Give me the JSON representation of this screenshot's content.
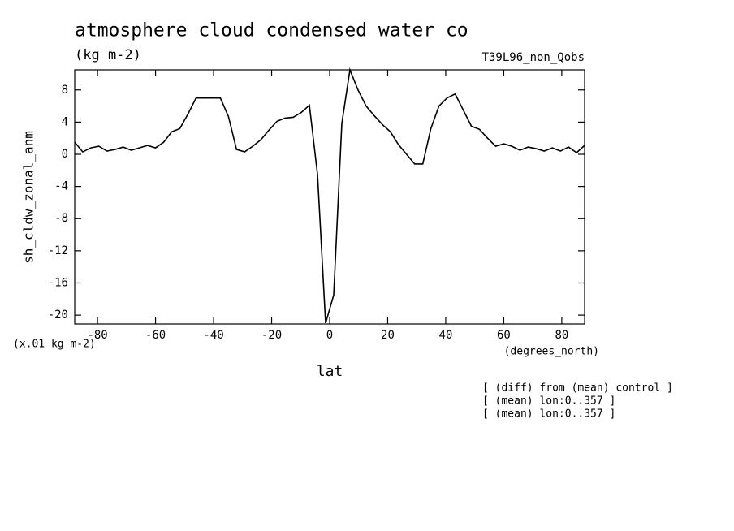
{
  "chart_data": {
    "type": "line",
    "title": "atmosphere cloud condensed water co",
    "subtitle": "(kg m-2)",
    "experiment": "T39L96_non_Qobs",
    "y_label": "sh_cldw_zonal_anm",
    "y_units": "(x.01 kg m-2)",
    "x_units": "(degrees_north)",
    "x_label": "lat",
    "notes": [
      "[ (diff) from (mean) control ]",
      "[ (mean) lon:0..357 ]",
      "[ (mean) lon:0..357 ]"
    ],
    "x": [
      -87.86,
      -85.1,
      -82.31,
      -79.53,
      -76.74,
      -73.95,
      -71.16,
      -68.37,
      -65.58,
      -62.79,
      -60.0,
      -57.21,
      -54.42,
      -51.63,
      -48.84,
      -46.04,
      -43.25,
      -40.46,
      -37.67,
      -34.88,
      -32.09,
      -29.3,
      -26.51,
      -23.72,
      -20.93,
      -18.14,
      -15.35,
      -12.56,
      -9.77,
      -6.98,
      -4.19,
      -1.4,
      1.4,
      4.19,
      6.98,
      9.77,
      12.56,
      15.35,
      18.14,
      20.93,
      23.72,
      26.51,
      29.3,
      32.09,
      34.88,
      37.67,
      40.46,
      43.25,
      46.04,
      48.84,
      51.63,
      54.42,
      57.21,
      60.0,
      62.79,
      65.58,
      68.37,
      71.16,
      73.95,
      76.74,
      79.53,
      82.31,
      85.1,
      87.86
    ],
    "series": [
      {
        "name": "sh_cldw_zonal_anm",
        "color": "#000000",
        "values": [
          1.5,
          0.3,
          0.8,
          1.0,
          0.4,
          0.6,
          0.9,
          0.5,
          0.8,
          1.1,
          0.8,
          1.5,
          2.8,
          3.2,
          5.0,
          7.0,
          7.0,
          7.0,
          7.0,
          4.7,
          0.6,
          0.3,
          1.0,
          1.8,
          3.0,
          4.1,
          4.5,
          4.6,
          5.2,
          6.1,
          -2.5,
          -21.0,
          -17.5,
          3.8,
          10.5,
          8.0,
          6.0,
          4.8,
          3.7,
          2.8,
          1.2,
          0.0,
          -1.2,
          -1.2,
          3.2,
          6.0,
          7.0,
          7.5,
          5.5,
          3.5,
          3.1,
          2.0,
          1.0,
          1.3,
          1.0,
          0.5,
          0.9,
          0.7,
          0.4,
          0.8,
          0.4,
          0.9,
          0.2,
          1.1
        ]
      }
    ],
    "xlim": [
      -87.86,
      87.86
    ],
    "xticks": [
      -80,
      -60,
      -40,
      -20,
      0,
      20,
      40,
      60,
      80
    ],
    "ylim": [
      -21.1,
      10.5
    ],
    "yticks": [
      -20,
      -16,
      -12,
      -8,
      -4,
      0,
      4,
      8
    ]
  }
}
